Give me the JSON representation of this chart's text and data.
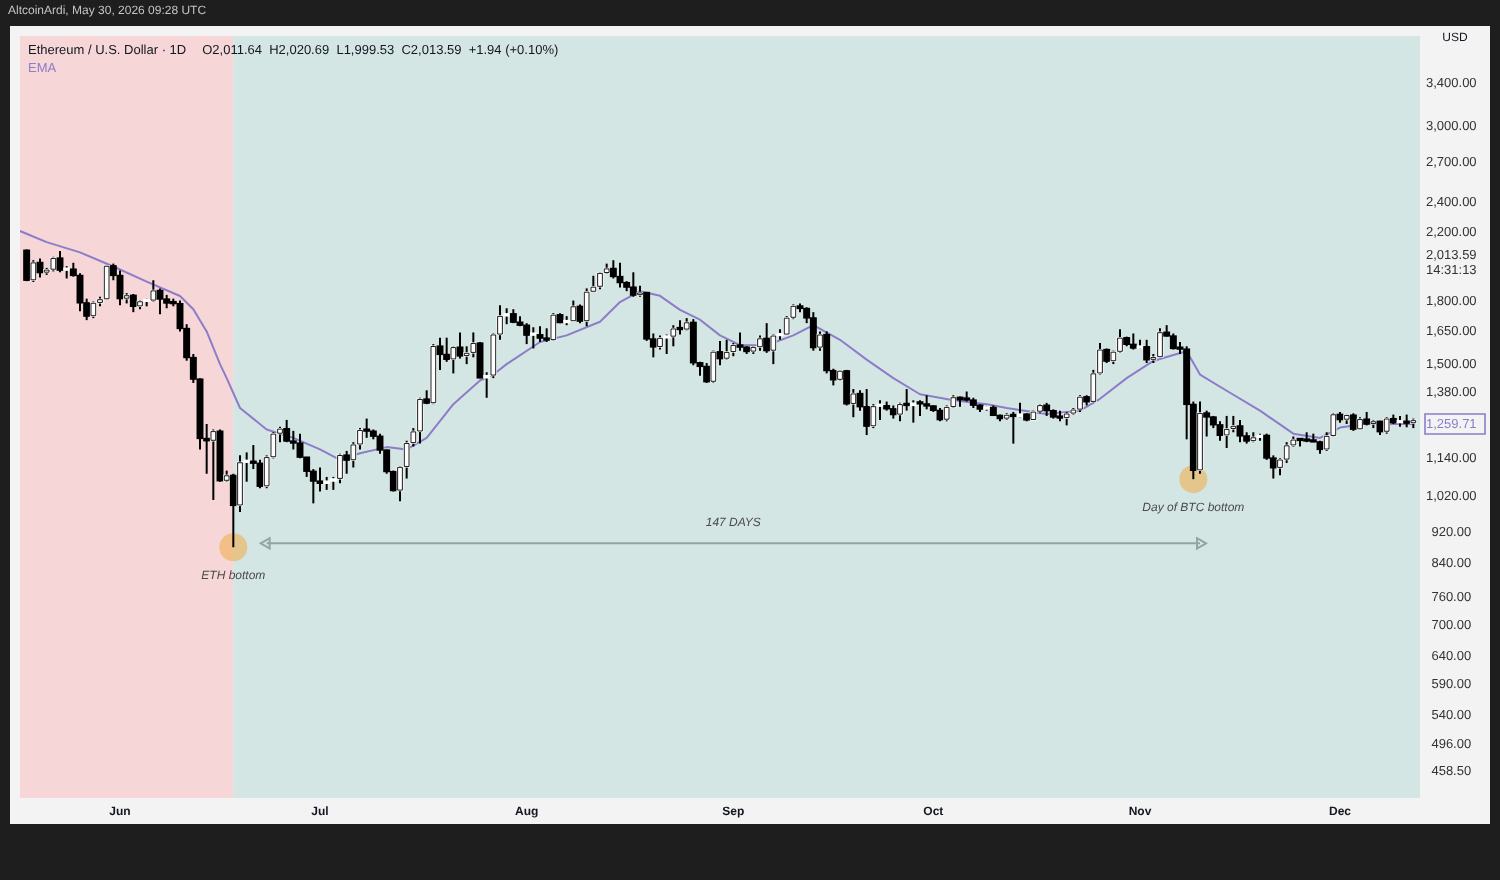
{
  "chart_data": {
    "type": "candlestick",
    "title": "Ethereum / U.S. Dollar · 1D",
    "subtitle": "O2,011.64  H2,020.69  L1,999.53  C2,013.59  +1.94 (+0.10%)",
    "ylabel": "USD",
    "log": true,
    "legend": "top left",
    "annotations": [
      "AltcoinArdi, May 30, 2026 09:28 UTC",
      {
        "text": "ETH bottom",
        "x": "--06-18",
        "y": 880
      },
      "147 DAYS",
      {
        "text": "Day of BTC bottom",
        "x": "--11-09",
        "y": 1073
      }
    ],
    "xlim": [
      "--05-17",
      "--12-13"
    ],
    "xticks": [
      {
        "value": "--06-01",
        "label": "Jun"
      },
      {
        "value": "--07-01",
        "label": "Jul"
      },
      {
        "value": "--08-01",
        "label": "Aug"
      },
      {
        "value": "--09-01",
        "label": "Sep"
      },
      {
        "value": "--10-01",
        "label": "Oct"
      },
      {
        "value": "--11-01",
        "label": "Nov"
      },
      {
        "value": "--12-01",
        "label": "Dec"
      }
    ],
    "ylim": [
      424,
      3900
    ],
    "yticks": [
      {
        "value": 3400,
        "label": "3,400.00"
      },
      {
        "value": 3000,
        "label": "3,000.00"
      },
      {
        "value": 2700,
        "label": "2,700.00"
      },
      {
        "value": 2400,
        "label": "2,400.00"
      },
      {
        "value": 2200,
        "label": "2,200.00"
      },
      {
        "value": 2013.59,
        "label": "2,013.59\n14:31:13"
      },
      {
        "value": 1800,
        "label": "1,800.00"
      },
      {
        "value": 1650,
        "label": "1,650.00"
      },
      {
        "value": 1500,
        "label": "1,500.00"
      },
      {
        "value": 1380,
        "label": "1,380.00"
      },
      {
        "value": 1259.71,
        "label": "1,259.71"
      },
      {
        "value": 1140,
        "label": "1,140.00"
      },
      {
        "value": 1020,
        "label": "1,020.00"
      },
      {
        "value": 920,
        "label": "920.00"
      },
      {
        "value": 840,
        "label": "840.00"
      },
      {
        "value": 760,
        "label": "760.00"
      },
      {
        "value": 700,
        "label": "700.00"
      },
      {
        "value": 640,
        "label": "640.00"
      },
      {
        "value": 590,
        "label": "590.00"
      },
      {
        "value": 540,
        "label": "540.00"
      },
      {
        "value": 496,
        "label": "496.00"
      },
      {
        "value": 458.5,
        "label": "458.50"
      }
    ],
    "bands": [
      {
        "axis": "x",
        "from": "--05-17",
        "to": "--06-18",
        "color": "#f6d6d7"
      },
      {
        "axis": "x",
        "from": "--06-18",
        "to": "--12-13",
        "color": "#d4e6e3"
      }
    ],
    "x": [
      "--05-18",
      "--05-19",
      "--05-20",
      "--05-21",
      "--05-22",
      "--05-23",
      "--05-24",
      "--05-25",
      "--05-26",
      "--05-27",
      "--05-28",
      "--05-29",
      "--05-30",
      "--05-31",
      "--06-01",
      "--06-02",
      "--06-03",
      "--06-04",
      "--06-05",
      "--06-06",
      "--06-07",
      "--06-08",
      "--06-09",
      "--06-10",
      "--06-11",
      "--06-12",
      "--06-13",
      "--06-14",
      "--06-15",
      "--06-16",
      "--06-17",
      "--06-18",
      "--06-19",
      "--06-20",
      "--06-21",
      "--06-22",
      "--06-23",
      "--06-24",
      "--06-25",
      "--06-26",
      "--06-27",
      "--06-28",
      "--06-29",
      "--06-30",
      "--07-01",
      "--07-02",
      "--07-03",
      "--07-04",
      "--07-05",
      "--07-06",
      "--07-07",
      "--07-08",
      "--07-09",
      "--07-10",
      "--07-11",
      "--07-12",
      "--07-13",
      "--07-14",
      "--07-15",
      "--07-16",
      "--07-17",
      "--07-18",
      "--07-19",
      "--07-20",
      "--07-21",
      "--07-22",
      "--07-23",
      "--07-24",
      "--07-25",
      "--07-26",
      "--07-27",
      "--07-28",
      "--07-29",
      "--07-30",
      "--07-31",
      "--08-01",
      "--08-02",
      "--08-03",
      "--08-04",
      "--08-05",
      "--08-06",
      "--08-07",
      "--08-08",
      "--08-09",
      "--08-10",
      "--08-11",
      "--08-12",
      "--08-13",
      "--08-14",
      "--08-15",
      "--08-16",
      "--08-17",
      "--08-18",
      "--08-19",
      "--08-20",
      "--08-21",
      "--08-22",
      "--08-23",
      "--08-24",
      "--08-25",
      "--08-26",
      "--08-27",
      "--08-28",
      "--08-29",
      "--08-30",
      "--08-31",
      "--09-01",
      "--09-02",
      "--09-03",
      "--09-04",
      "--09-05",
      "--09-06",
      "--09-07",
      "--09-08",
      "--09-09",
      "--09-10",
      "--09-11",
      "--09-12",
      "--09-13",
      "--09-14",
      "--09-15",
      "--09-16",
      "--09-17",
      "--09-18",
      "--09-19",
      "--09-20",
      "--09-21",
      "--09-22",
      "--09-23",
      "--09-24",
      "--09-25",
      "--09-26",
      "--09-27",
      "--09-28",
      "--09-29",
      "--09-30",
      "--10-01",
      "--10-02",
      "--10-03",
      "--10-04",
      "--10-05",
      "--10-06",
      "--10-07",
      "--10-08",
      "--10-09",
      "--10-10",
      "--10-11",
      "--10-12",
      "--10-13",
      "--10-14",
      "--10-15",
      "--10-16",
      "--10-17",
      "--10-18",
      "--10-19",
      "--10-20",
      "--10-21",
      "--10-22",
      "--10-23",
      "--10-24",
      "--10-25",
      "--10-26",
      "--10-27",
      "--10-28",
      "--10-29",
      "--10-30",
      "--10-31",
      "--11-01",
      "--11-02",
      "--11-03",
      "--11-04",
      "--11-05",
      "--11-06",
      "--11-07",
      "--11-08",
      "--11-09",
      "--11-10",
      "--11-11",
      "--11-12",
      "--11-13",
      "--11-14",
      "--11-15",
      "--11-16",
      "--11-17",
      "--11-18",
      "--11-19",
      "--11-20",
      "--11-21",
      "--11-22",
      "--11-23",
      "--11-24",
      "--11-25",
      "--11-26",
      "--11-27",
      "--11-28",
      "--11-29",
      "--11-30",
      "--12-01",
      "--12-02",
      "--12-03",
      "--12-04",
      "--12-05",
      "--12-06",
      "--12-07",
      "--12-08",
      "--12-09",
      "--12-10",
      "--12-11",
      "--12-12"
    ],
    "ohlc": [
      [
        2090,
        2095,
        1910,
        1915
      ],
      [
        1915,
        2030,
        1905,
        2017
      ],
      [
        2017,
        2040,
        1930,
        1958
      ],
      [
        1958,
        1985,
        1945,
        1975
      ],
      [
        1975,
        2050,
        1965,
        2043
      ],
      [
        2043,
        2085,
        1960,
        1972
      ],
      [
        1972,
        1995,
        1925,
        1978
      ],
      [
        1978,
        2015,
        1935,
        1942
      ],
      [
        1942,
        1955,
        1750,
        1793
      ],
      [
        1793,
        1815,
        1705,
        1725
      ],
      [
        1725,
        1800,
        1715,
        1793
      ],
      [
        1793,
        1825,
        1775,
        1812
      ],
      [
        1812,
        2000,
        1810,
        1997
      ],
      [
        1997,
        2010,
        1915,
        1942
      ],
      [
        1942,
        1970,
        1780,
        1815
      ],
      [
        1815,
        1845,
        1790,
        1833
      ],
      [
        1833,
        1840,
        1745,
        1775
      ],
      [
        1775,
        1805,
        1760,
        1801
      ],
      [
        1801,
        1815,
        1775,
        1805
      ],
      [
        1805,
        1915,
        1800,
        1859
      ],
      [
        1859,
        1870,
        1735,
        1813
      ],
      [
        1813,
        1835,
        1765,
        1792
      ],
      [
        1792,
        1815,
        1775,
        1789
      ],
      [
        1789,
        1805,
        1650,
        1664
      ],
      [
        1664,
        1685,
        1515,
        1529
      ],
      [
        1529,
        1545,
        1420,
        1436
      ],
      [
        1436,
        1440,
        1170,
        1208
      ],
      [
        1208,
        1260,
        1090,
        1200
      ],
      [
        1200,
        1240,
        1010,
        1234
      ],
      [
        1234,
        1240,
        1065,
        1068
      ],
      [
        1068,
        1100,
        1065,
        1085
      ],
      [
        1085,
        1090,
        880,
        994
      ],
      [
        994,
        1150,
        975,
        1127
      ],
      [
        1127,
        1160,
        1065,
        1128
      ],
      [
        1128,
        1185,
        1105,
        1124
      ],
      [
        1124,
        1135,
        1045,
        1051
      ],
      [
        1051,
        1150,
        1045,
        1144
      ],
      [
        1144,
        1230,
        1140,
        1225
      ],
      [
        1225,
        1250,
        1195,
        1243
      ],
      [
        1243,
        1275,
        1195,
        1199
      ],
      [
        1199,
        1235,
        1170,
        1192
      ],
      [
        1192,
        1225,
        1140,
        1144
      ],
      [
        1144,
        1145,
        1080,
        1098
      ],
      [
        1098,
        1105,
        1000,
        1067
      ],
      [
        1067,
        1110,
        1035,
        1060
      ],
      [
        1060,
        1080,
        1040,
        1067
      ],
      [
        1067,
        1080,
        1040,
        1074
      ],
      [
        1074,
        1155,
        1060,
        1151
      ],
      [
        1151,
        1165,
        1090,
        1134
      ],
      [
        1134,
        1195,
        1110,
        1187
      ],
      [
        1187,
        1245,
        1170,
        1238
      ],
      [
        1238,
        1280,
        1210,
        1234
      ],
      [
        1234,
        1240,
        1205,
        1216
      ],
      [
        1216,
        1225,
        1155,
        1168
      ],
      [
        1168,
        1170,
        1090,
        1097
      ],
      [
        1097,
        1100,
        1035,
        1038
      ],
      [
        1038,
        1115,
        1006,
        1112
      ],
      [
        1112,
        1200,
        1075,
        1192
      ],
      [
        1192,
        1245,
        1180,
        1233
      ],
      [
        1233,
        1360,
        1190,
        1355
      ],
      [
        1355,
        1390,
        1335,
        1339
      ],
      [
        1339,
        1590,
        1335,
        1581
      ],
      [
        1581,
        1620,
        1475,
        1543
      ],
      [
        1543,
        1620,
        1510,
        1521
      ],
      [
        1521,
        1580,
        1460,
        1576
      ],
      [
        1576,
        1645,
        1525,
        1536
      ],
      [
        1536,
        1580,
        1500,
        1550
      ],
      [
        1550,
        1645,
        1530,
        1595
      ],
      [
        1595,
        1600,
        1440,
        1441
      ],
      [
        1441,
        1465,
        1360,
        1451
      ],
      [
        1451,
        1640,
        1440,
        1635
      ],
      [
        1635,
        1780,
        1610,
        1726
      ],
      [
        1726,
        1765,
        1685,
        1737
      ],
      [
        1737,
        1760,
        1690,
        1695
      ],
      [
        1695,
        1725,
        1675,
        1680
      ],
      [
        1680,
        1690,
        1590,
        1632
      ],
      [
        1632,
        1670,
        1570,
        1634
      ],
      [
        1634,
        1675,
        1600,
        1618
      ],
      [
        1618,
        1665,
        1600,
        1609
      ],
      [
        1609,
        1740,
        1605,
        1732
      ],
      [
        1732,
        1740,
        1690,
        1693
      ],
      [
        1693,
        1725,
        1680,
        1700
      ],
      [
        1700,
        1805,
        1700,
        1775
      ],
      [
        1775,
        1785,
        1690,
        1700
      ],
      [
        1700,
        1870,
        1675,
        1852
      ],
      [
        1852,
        1940,
        1850,
        1879
      ],
      [
        1879,
        1960,
        1865,
        1956
      ],
      [
        1956,
        2010,
        1950,
        1982
      ],
      [
        1982,
        2030,
        1925,
        1936
      ],
      [
        1936,
        2015,
        1875,
        1902
      ],
      [
        1902,
        1910,
        1855,
        1877
      ],
      [
        1877,
        1960,
        1825,
        1834
      ],
      [
        1834,
        1885,
        1825,
        1848
      ],
      [
        1848,
        1850,
        1605,
        1614
      ],
      [
        1614,
        1640,
        1530,
        1577
      ],
      [
        1577,
        1630,
        1565,
        1619
      ],
      [
        1619,
        1635,
        1545,
        1625
      ],
      [
        1625,
        1680,
        1580,
        1664
      ],
      [
        1664,
        1705,
        1635,
        1659
      ],
      [
        1659,
        1715,
        1655,
        1694
      ],
      [
        1694,
        1710,
        1495,
        1506
      ],
      [
        1506,
        1510,
        1450,
        1490
      ],
      [
        1490,
        1505,
        1420,
        1425
      ],
      [
        1425,
        1560,
        1420,
        1555
      ],
      [
        1555,
        1605,
        1495,
        1524
      ],
      [
        1524,
        1610,
        1520,
        1554
      ],
      [
        1554,
        1595,
        1535,
        1586
      ],
      [
        1586,
        1645,
        1560,
        1576
      ],
      [
        1576,
        1580,
        1545,
        1556
      ],
      [
        1556,
        1580,
        1545,
        1576
      ],
      [
        1576,
        1630,
        1560,
        1617
      ],
      [
        1617,
        1690,
        1550,
        1560
      ],
      [
        1560,
        1635,
        1500,
        1630
      ],
      [
        1630,
        1660,
        1610,
        1635
      ],
      [
        1635,
        1725,
        1635,
        1717
      ],
      [
        1717,
        1785,
        1710,
        1777
      ],
      [
        1777,
        1790,
        1745,
        1764
      ],
      [
        1764,
        1770,
        1690,
        1716
      ],
      [
        1716,
        1745,
        1560,
        1574
      ],
      [
        1574,
        1650,
        1560,
        1635
      ],
      [
        1635,
        1650,
        1460,
        1472
      ],
      [
        1472,
        1480,
        1410,
        1433
      ],
      [
        1433,
        1475,
        1430,
        1471
      ],
      [
        1471,
        1475,
        1330,
        1336
      ],
      [
        1336,
        1395,
        1285,
        1377
      ],
      [
        1377,
        1390,
        1310,
        1325
      ],
      [
        1325,
        1395,
        1220,
        1252
      ],
      [
        1252,
        1335,
        1245,
        1327
      ],
      [
        1327,
        1350,
        1275,
        1329
      ],
      [
        1329,
        1345,
        1310,
        1317
      ],
      [
        1317,
        1330,
        1280,
        1295
      ],
      [
        1295,
        1340,
        1270,
        1335
      ],
      [
        1335,
        1395,
        1310,
        1330
      ],
      [
        1330,
        1350,
        1265,
        1339
      ],
      [
        1339,
        1350,
        1290,
        1336
      ],
      [
        1336,
        1370,
        1315,
        1328
      ],
      [
        1328,
        1330,
        1305,
        1311
      ],
      [
        1311,
        1320,
        1270,
        1276
      ],
      [
        1276,
        1330,
        1270,
        1324
      ],
      [
        1324,
        1370,
        1320,
        1362
      ],
      [
        1362,
        1365,
        1325,
        1352
      ],
      [
        1352,
        1385,
        1345,
        1351
      ],
      [
        1351,
        1360,
        1320,
        1331
      ],
      [
        1331,
        1335,
        1305,
        1316
      ],
      [
        1316,
        1325,
        1310,
        1322
      ],
      [
        1322,
        1330,
        1290,
        1292
      ],
      [
        1292,
        1295,
        1270,
        1280
      ],
      [
        1280,
        1300,
        1275,
        1294
      ],
      [
        1294,
        1305,
        1190,
        1288
      ],
      [
        1288,
        1340,
        1285,
        1297
      ],
      [
        1297,
        1300,
        1270,
        1275
      ],
      [
        1275,
        1310,
        1275,
        1306
      ],
      [
        1306,
        1335,
        1300,
        1331
      ],
      [
        1331,
        1340,
        1290,
        1310
      ],
      [
        1310,
        1315,
        1280,
        1286
      ],
      [
        1286,
        1310,
        1270,
        1282
      ],
      [
        1282,
        1305,
        1255,
        1299
      ],
      [
        1299,
        1320,
        1295,
        1314
      ],
      [
        1314,
        1370,
        1305,
        1364
      ],
      [
        1364,
        1370,
        1330,
        1344
      ],
      [
        1344,
        1475,
        1340,
        1460
      ],
      [
        1460,
        1595,
        1455,
        1565
      ],
      [
        1565,
        1570,
        1505,
        1513
      ],
      [
        1513,
        1560,
        1500,
        1555
      ],
      [
        1555,
        1660,
        1550,
        1620
      ],
      [
        1620,
        1625,
        1580,
        1589
      ],
      [
        1589,
        1640,
        1565,
        1572
      ],
      [
        1572,
        1610,
        1570,
        1578
      ],
      [
        1578,
        1610,
        1505,
        1519
      ],
      [
        1519,
        1545,
        1505,
        1531
      ],
      [
        1531,
        1665,
        1530,
        1646
      ],
      [
        1646,
        1680,
        1625,
        1628
      ],
      [
        1628,
        1640,
        1565,
        1570
      ],
      [
        1570,
        1600,
        1545,
        1567
      ],
      [
        1567,
        1580,
        1205,
        1334
      ],
      [
        1334,
        1345,
        1073,
        1101
      ],
      [
        1101,
        1345,
        1090,
        1301
      ],
      [
        1301,
        1310,
        1215,
        1286
      ],
      [
        1286,
        1290,
        1245,
        1257
      ],
      [
        1257,
        1270,
        1200,
        1219
      ],
      [
        1219,
        1290,
        1175,
        1242
      ],
      [
        1242,
        1290,
        1230,
        1253
      ],
      [
        1253,
        1275,
        1195,
        1217
      ],
      [
        1217,
        1230,
        1190,
        1199
      ],
      [
        1199,
        1230,
        1195,
        1212
      ],
      [
        1212,
        1225,
        1200,
        1219
      ],
      [
        1219,
        1225,
        1135,
        1141
      ],
      [
        1141,
        1150,
        1075,
        1109
      ],
      [
        1109,
        1140,
        1085,
        1136
      ],
      [
        1136,
        1195,
        1125,
        1184
      ],
      [
        1184,
        1215,
        1180,
        1204
      ],
      [
        1204,
        1205,
        1180,
        1201
      ],
      [
        1201,
        1230,
        1195,
        1199
      ],
      [
        1199,
        1225,
        1195,
        1196
      ],
      [
        1196,
        1200,
        1155,
        1170
      ],
      [
        1170,
        1230,
        1165,
        1217
      ],
      [
        1217,
        1300,
        1215,
        1296
      ],
      [
        1296,
        1305,
        1265,
        1276
      ],
      [
        1276,
        1295,
        1260,
        1293
      ],
      [
        1293,
        1300,
        1235,
        1241
      ],
      [
        1241,
        1285,
        1240,
        1278
      ],
      [
        1278,
        1305,
        1255,
        1260
      ],
      [
        1260,
        1275,
        1245,
        1270
      ],
      [
        1270,
        1272,
        1220,
        1232
      ],
      [
        1232,
        1285,
        1225,
        1280
      ],
      [
        1280,
        1295,
        1260,
        1265
      ],
      [
        1265,
        1290,
        1250,
        1266
      ],
      [
        1266,
        1295,
        1248,
        1263
      ],
      [
        1263,
        1280,
        1245,
        1274
      ]
    ],
    "colors": [
      "#000000",
      "#ffffff",
      "#000000",
      "#ffffff",
      "#ffffff",
      "#000000",
      "#ffffff",
      "#000000",
      "#000000",
      "#000000",
      "#ffffff",
      "#ffffff",
      "#ffffff",
      "#000000",
      "#000000",
      "#ffffff",
      "#000000",
      "#ffffff",
      "#ffffff",
      "#ffffff",
      "#000000",
      "#000000",
      "#000000",
      "#000000",
      "#000000",
      "#000000",
      "#000000",
      "#000000",
      "#ffffff",
      "#000000",
      "#ffffff",
      "#000000",
      "#ffffff",
      "#ffffff",
      "#000000",
      "#000000",
      "#ffffff",
      "#ffffff",
      "#ffffff",
      "#000000",
      "#000000",
      "#000000",
      "#000000",
      "#000000",
      "#000000",
      "#ffffff",
      "#ffffff",
      "#ffffff",
      "#000000",
      "#ffffff",
      "#ffffff",
      "#000000",
      "#000000",
      "#000000",
      "#000000",
      "#000000",
      "#ffffff",
      "#ffffff",
      "#ffffff",
      "#ffffff",
      "#000000",
      "#ffffff",
      "#000000",
      "#000000",
      "#ffffff",
      "#000000",
      "#ffffff",
      "#ffffff",
      "#000000",
      "#ffffff",
      "#ffffff",
      "#ffffff",
      "#ffffff",
      "#000000",
      "#000000",
      "#000000",
      "#ffffff",
      "#000000",
      "#000000",
      "#ffffff",
      "#000000",
      "#ffffff",
      "#ffffff",
      "#000000",
      "#ffffff",
      "#ffffff",
      "#ffffff",
      "#ffffff",
      "#000000",
      "#000000",
      "#000000",
      "#000000",
      "#ffffff",
      "#000000",
      "#000000",
      "#ffffff",
      "#ffffff",
      "#ffffff",
      "#000000",
      "#ffffff",
      "#000000",
      "#000000",
      "#000000",
      "#ffffff",
      "#000000",
      "#ffffff",
      "#ffffff",
      "#000000",
      "#000000",
      "#ffffff",
      "#ffffff",
      "#000000",
      "#ffffff",
      "#ffffff",
      "#ffffff",
      "#ffffff",
      "#000000",
      "#000000",
      "#000000",
      "#ffffff",
      "#000000",
      "#000000",
      "#ffffff",
      "#000000",
      "#ffffff",
      "#000000",
      "#000000",
      "#ffffff",
      "#ffffff",
      "#000000",
      "#000000",
      "#ffffff",
      "#000000",
      "#ffffff",
      "#000000",
      "#000000",
      "#000000",
      "#000000",
      "#ffffff",
      "#ffffff",
      "#000000",
      "#000000",
      "#000000",
      "#000000",
      "#ffffff",
      "#000000",
      "#000000",
      "#ffffff",
      "#000000",
      "#ffffff",
      "#000000",
      "#ffffff",
      "#ffffff",
      "#000000",
      "#000000",
      "#000000",
      "#ffffff",
      "#ffffff",
      "#ffffff",
      "#000000",
      "#ffffff",
      "#ffffff",
      "#000000",
      "#ffffff",
      "#ffffff",
      "#000000",
      "#000000",
      "#ffffff",
      "#000000",
      "#ffffff",
      "#ffffff",
      "#000000",
      "#000000",
      "#000000",
      "#000000",
      "#000000",
      "#ffffff",
      "#000000",
      "#000000",
      "#000000",
      "#ffffff",
      "#ffffff",
      "#000000",
      "#000000",
      "#ffffff",
      "#ffffff",
      "#000000",
      "#000000",
      "#ffffff",
      "#ffffff",
      "#ffffff",
      "#000000",
      "#000000",
      "#000000",
      "#000000",
      "#ffffff",
      "#ffffff",
      "#000000",
      "#ffffff",
      "#000000",
      "#ffffff",
      "#000000",
      "#ffffff",
      "#000000",
      "#ffffff",
      "#000000",
      "#ffffff",
      "#000000",
      "#ffffff"
    ],
    "series": [
      {
        "name": "EMA",
        "type": "line",
        "color": "#8c7dc9",
        "x": [
          "--05-17",
          "--05-21",
          "--05-26",
          "--05-31",
          "--06-05",
          "--06-10",
          "--06-12",
          "--06-14",
          "--06-16",
          "--06-17",
          "--06-19",
          "--06-23",
          "--06-27",
          "--07-01",
          "--07-04",
          "--07-07",
          "--07-11",
          "--07-14",
          "--07-17",
          "--07-21",
          "--07-25",
          "--07-27",
          "--07-29",
          "--08-03",
          "--08-07",
          "--08-12",
          "--08-15",
          "--08-18",
          "--08-21",
          "--08-24",
          "--08-27",
          "--08-30",
          "--09-02",
          "--09-06",
          "--09-10",
          "--09-13",
          "--09-17",
          "--09-21",
          "--09-25",
          "--09-29",
          "--10-04",
          "--10-09",
          "--10-12",
          "--10-18",
          "--10-23",
          "--10-26",
          "--10-30",
          "--11-03",
          "--11-06",
          "--11-08",
          "--11-10",
          "--11-14",
          "--11-19",
          "--11-24",
          "--11-28",
          "--12-01",
          "--12-05",
          "--12-12"
        ],
        "values": [
          2210,
          2140,
          2077,
          1993,
          1907,
          1829,
          1760,
          1650,
          1500,
          1440,
          1320,
          1240,
          1210,
          1170,
          1135,
          1157,
          1178,
          1170,
          1210,
          1335,
          1430,
          1455,
          1500,
          1600,
          1631,
          1697,
          1797,
          1855,
          1830,
          1757,
          1707,
          1631,
          1585,
          1585,
          1631,
          1680,
          1610,
          1520,
          1440,
          1374,
          1350,
          1335,
          1320,
          1297,
          1310,
          1356,
          1440,
          1514,
          1540,
          1557,
          1455,
          1388,
          1310,
          1225,
          1210,
          1247,
          1261,
          1259.71
        ]
      },
      {
        "type": "line",
        "color": "#93a4a2",
        "marker": "triangle",
        "x": [
          "--06-23",
          "--11-10"
        ],
        "values": [
          890,
          890
        ]
      }
    ]
  }
}
